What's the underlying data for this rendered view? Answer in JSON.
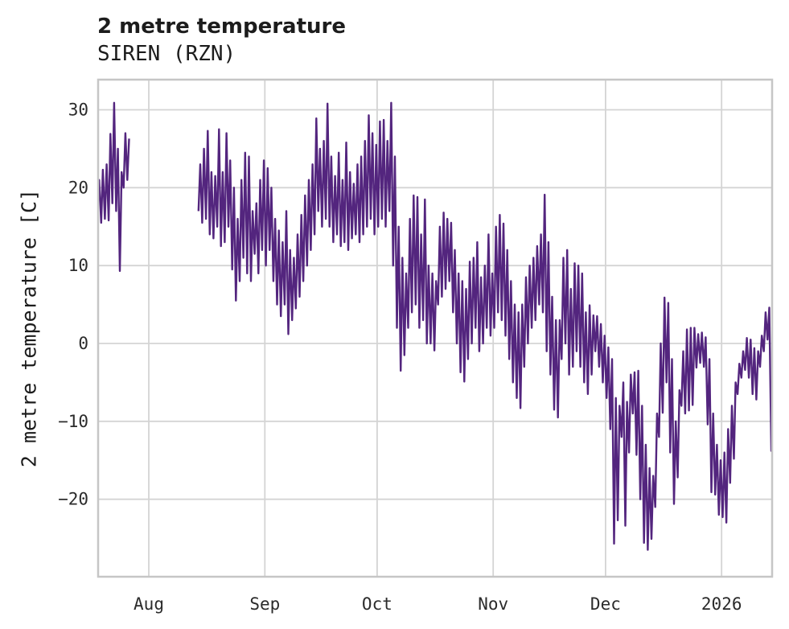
{
  "header": {
    "title": "2 metre temperature",
    "subtitle": "SIREN (RZN)"
  },
  "chart_data": {
    "type": "line",
    "title": "2 metre temperature",
    "subtitle": "SIREN (RZN)",
    "xlabel": "",
    "ylabel": "2 metre temperature [C]",
    "legend": "none",
    "grid": true,
    "line_color": "#53257E",
    "grid_color": "#d4d4d4",
    "spine_color": "#c6c6c6",
    "tick_text_color": "#2b2b2b",
    "x_start_date": "2025-07-18",
    "x_axis": {
      "tick_labels": [
        "Aug",
        "Sep",
        "Oct",
        "Nov",
        "Dec",
        "2026"
      ],
      "tick_days": [
        14,
        45,
        75,
        106,
        136,
        167
      ]
    },
    "y_axis": {
      "tick_labels": [
        "30",
        "20",
        "10",
        "0",
        "−10",
        "−20"
      ],
      "tick_values": [
        30,
        20,
        10,
        0,
        -10,
        -20
      ],
      "ylim": [
        -29.9,
        33.9
      ]
    },
    "data_gap": "no data Jul 27 - Aug 13",
    "series": [
      {
        "name": "2 metre temperature",
        "units": "C",
        "sampling": "daily [min,max] starting 2025-07-18",
        "daily_min_max": [
          [
            16.5,
            21
          ],
          [
            15.5,
            22.3
          ],
          [
            16,
            23
          ],
          [
            15.8,
            26.9
          ],
          [
            18,
            30.9
          ],
          [
            17,
            25
          ],
          [
            9.3,
            22
          ],
          [
            20,
            27
          ],
          [
            21,
            26.3
          ],
          null,
          null,
          null,
          null,
          null,
          null,
          null,
          null,
          null,
          null,
          null,
          null,
          null,
          null,
          null,
          null,
          null,
          null,
          [
            17,
            23
          ],
          [
            15.5,
            25
          ],
          [
            16,
            27.3
          ],
          [
            14,
            22
          ],
          [
            13.5,
            21.5
          ],
          [
            15,
            27.5
          ],
          [
            12.5,
            22
          ],
          [
            13,
            27
          ],
          [
            15,
            23.5
          ],
          [
            9.5,
            20
          ],
          [
            5.5,
            16
          ],
          [
            8,
            21
          ],
          [
            11,
            24.5
          ],
          [
            9,
            24
          ],
          [
            8,
            17
          ],
          [
            11.5,
            18
          ],
          [
            9,
            21
          ],
          [
            12,
            23.5
          ],
          [
            10,
            22.5
          ],
          [
            12,
            20
          ],
          [
            8,
            16
          ],
          [
            5,
            14.5
          ],
          [
            3.5,
            13
          ],
          [
            5,
            17
          ],
          [
            1.2,
            12
          ],
          [
            3,
            11
          ],
          [
            4.5,
            14
          ],
          [
            6,
            16.5
          ],
          [
            8,
            19
          ],
          [
            10,
            21
          ],
          [
            12,
            23
          ],
          [
            14,
            28.9
          ],
          [
            17,
            25
          ],
          [
            15,
            26
          ],
          [
            16,
            30.8
          ],
          [
            15,
            24
          ],
          [
            13,
            21.5
          ],
          [
            14,
            24.5
          ],
          [
            12.5,
            21
          ],
          [
            13,
            25.8
          ],
          [
            12,
            22
          ],
          [
            13.5,
            20.5
          ],
          [
            14,
            23
          ],
          [
            13,
            24
          ],
          [
            14,
            26
          ],
          [
            15,
            29.3
          ],
          [
            16,
            27
          ],
          [
            14,
            25.5
          ],
          [
            15,
            28.5
          ],
          [
            16,
            28.7
          ],
          [
            15,
            26
          ],
          [
            17,
            30.9
          ],
          [
            10,
            24
          ],
          [
            2,
            15
          ],
          [
            -3.5,
            11
          ],
          [
            -1.5,
            9
          ],
          [
            2,
            16
          ],
          [
            4,
            19
          ],
          [
            5,
            18.8
          ],
          [
            2,
            14
          ],
          [
            3,
            18.5
          ],
          [
            0,
            10
          ],
          [
            0,
            9
          ],
          [
            -0.9,
            8
          ],
          [
            5,
            15
          ],
          [
            6,
            16.8
          ],
          [
            7,
            16
          ],
          [
            8,
            15.5
          ],
          [
            4,
            12
          ],
          [
            0,
            9
          ],
          [
            -3.7,
            8
          ],
          [
            -4.9,
            7
          ],
          [
            -2,
            10.5
          ],
          [
            0,
            11
          ],
          [
            2,
            13
          ],
          [
            -1,
            8.5
          ],
          [
            0,
            10
          ],
          [
            2,
            14
          ],
          [
            1,
            9
          ],
          [
            2,
            15
          ],
          [
            4,
            16.5
          ],
          [
            3,
            15.4
          ],
          [
            1,
            12
          ],
          [
            -2,
            8
          ],
          [
            -5,
            5
          ],
          [
            -7,
            4
          ],
          [
            -8.3,
            5
          ],
          [
            -3,
            8.5
          ],
          [
            0,
            10
          ],
          [
            2,
            11
          ],
          [
            3,
            12.5
          ],
          [
            5,
            14
          ],
          [
            4,
            19.1
          ],
          [
            -1,
            13
          ],
          [
            -4,
            6
          ],
          [
            -8.5,
            3
          ],
          [
            -9.5,
            3
          ],
          [
            -2,
            11
          ],
          [
            0,
            12
          ],
          [
            -4,
            7
          ],
          [
            -3,
            10.3
          ],
          [
            -1,
            10
          ],
          [
            -3,
            9
          ],
          [
            -5,
            4
          ],
          [
            -6.5,
            4.9
          ],
          [
            -4,
            3.6
          ],
          [
            -1,
            3.5
          ],
          [
            -3,
            2.5
          ],
          [
            -5,
            1
          ],
          [
            -7,
            -0.5
          ],
          [
            -11,
            -2
          ],
          [
            -25.7,
            -7
          ],
          [
            -22.7,
            -8
          ],
          [
            -12,
            -5
          ],
          [
            -23.4,
            -7.5
          ],
          [
            -14,
            -4
          ],
          [
            -9,
            -3.7
          ],
          [
            -14.3,
            -3.5
          ],
          [
            -20,
            -8
          ],
          [
            -25.6,
            -13
          ],
          [
            -26.5,
            -16
          ],
          [
            -25.1,
            -17
          ],
          [
            -21,
            -9
          ],
          [
            -12,
            0
          ],
          [
            -8.9,
            5.9
          ],
          [
            -5,
            5.2
          ],
          [
            -14,
            -2
          ],
          [
            -20.6,
            -10
          ],
          [
            -17.2,
            -6
          ],
          [
            -8,
            -1
          ],
          [
            -9,
            1.8
          ],
          [
            -8.6,
            2
          ],
          [
            -7.9,
            2
          ],
          [
            -3.1,
            1.2
          ],
          [
            -2.5,
            1.4
          ],
          [
            -3,
            0.8
          ],
          [
            -10.4,
            -2
          ],
          [
            -19.1,
            -9
          ],
          [
            -19.4,
            -13
          ],
          [
            -22,
            -15
          ],
          [
            -22.3,
            -14
          ],
          [
            -23,
            -11
          ],
          [
            -17.9,
            -8
          ],
          [
            -14.8,
            -5
          ],
          [
            -6.5,
            -2.6
          ],
          [
            -4.4,
            -1
          ],
          [
            -3.4,
            0.7
          ],
          [
            -4.4,
            0.5
          ],
          [
            -6.5,
            -0.6
          ],
          [
            -7.2,
            -1
          ],
          [
            -3,
            1
          ],
          [
            -1,
            4
          ],
          [
            0.5,
            4.6
          ],
          [
            -13.8,
            -13.5
          ]
        ]
      }
    ]
  }
}
